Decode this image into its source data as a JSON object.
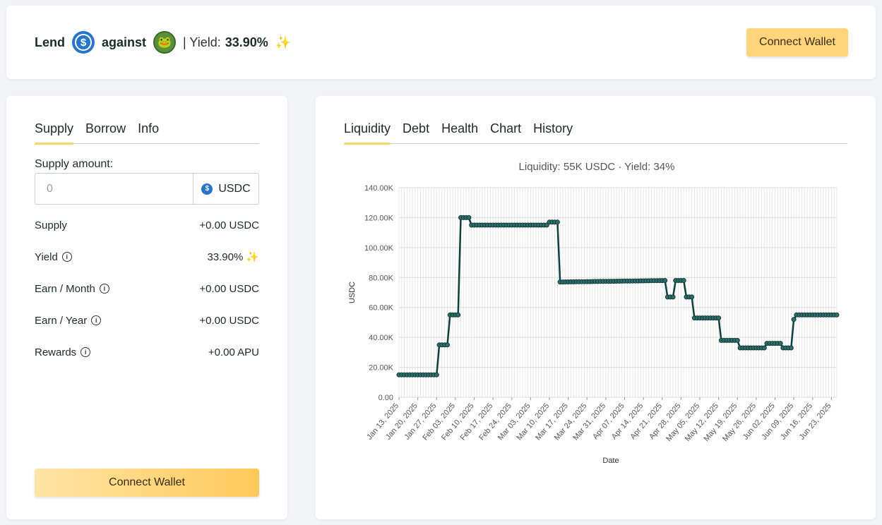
{
  "header": {
    "lend_label": "Lend",
    "against_label": "against",
    "yield_label": "| Yield:",
    "yield_value": "33.90%",
    "connect_label": "Connect Wallet"
  },
  "left_panel": {
    "tabs": [
      "Supply",
      "Borrow",
      "Info"
    ],
    "active_tab": "Supply",
    "supply_amount_label": "Supply amount:",
    "input_placeholder": "0",
    "token": "USDC",
    "stats": [
      {
        "label": "Supply",
        "value": "+0.00 USDC",
        "info": false,
        "sparkle": false
      },
      {
        "label": "Yield",
        "value": "33.90%",
        "info": true,
        "sparkle": true
      },
      {
        "label": "Earn / Month",
        "value": "+0.00 USDC",
        "info": true,
        "sparkle": false
      },
      {
        "label": "Earn / Year",
        "value": "+0.00 USDC",
        "info": true,
        "sparkle": false
      },
      {
        "label": "Rewards",
        "value": "+0.00 APU",
        "info": true,
        "sparkle": false
      }
    ],
    "connect_label": "Connect Wallet"
  },
  "right_panel": {
    "tabs": [
      "Liquidity",
      "Debt",
      "Health",
      "Chart",
      "History"
    ],
    "active_tab": "Liquidity"
  },
  "colors": {
    "accent": "#ffd36b",
    "line": "#0f4040",
    "usdc": "#2775ca"
  },
  "chart_data": {
    "type": "line",
    "title": "Liquidity: 55K USDC · Yield: 34%",
    "xlabel": "Date",
    "ylabel": "USDC",
    "ylim": [
      0,
      140000
    ],
    "y_ticks": [
      "0.00",
      "20.00K",
      "40.00K",
      "60.00K",
      "80.00K",
      "100.00K",
      "120.00K",
      "140.00K"
    ],
    "x_ticks": [
      "Jan 13, 2025",
      "Jan 20, 2025",
      "Jan 27, 2025",
      "Feb 03, 2025",
      "Feb 10, 2025",
      "Feb 17, 2025",
      "Feb 24, 2025",
      "Mar 03, 2025",
      "Mar 10, 2025",
      "Mar 17, 2025",
      "Mar 24, 2025",
      "Mar 31, 2025",
      "Apr 07, 2025",
      "Apr 14, 2025",
      "Apr 21, 2025",
      "Apr 28, 2025",
      "May 05, 2025",
      "May 12, 2025",
      "May 19, 2025",
      "May 26, 2025",
      "Jun 02, 2025",
      "Jun 09, 2025",
      "Jun 16, 2025",
      "Jun 23, 2025"
    ],
    "grid": true,
    "x_start": "2025-01-13",
    "x_end": "2025-06-25",
    "points": [
      [
        "2025-01-13",
        15000
      ],
      [
        "2025-01-27",
        15000
      ],
      [
        "2025-01-28",
        35000
      ],
      [
        "2025-01-31",
        35000
      ],
      [
        "2025-02-01",
        55000
      ],
      [
        "2025-02-04",
        55000
      ],
      [
        "2025-02-05",
        120000
      ],
      [
        "2025-02-08",
        120000
      ],
      [
        "2025-02-09",
        115000
      ],
      [
        "2025-03-09",
        115000
      ],
      [
        "2025-03-10",
        117000
      ],
      [
        "2025-03-13",
        117000
      ],
      [
        "2025-03-14",
        77000
      ],
      [
        "2025-04-22",
        78000
      ],
      [
        "2025-04-23",
        67000
      ],
      [
        "2025-04-25",
        67000
      ],
      [
        "2025-04-26",
        78000
      ],
      [
        "2025-04-29",
        78000
      ],
      [
        "2025-04-30",
        67000
      ],
      [
        "2025-05-02",
        67000
      ],
      [
        "2025-05-03",
        53000
      ],
      [
        "2025-05-12",
        53000
      ],
      [
        "2025-05-13",
        38000
      ],
      [
        "2025-05-19",
        38000
      ],
      [
        "2025-05-20",
        33000
      ],
      [
        "2025-05-29",
        33000
      ],
      [
        "2025-05-30",
        36000
      ],
      [
        "2025-06-04",
        36000
      ],
      [
        "2025-06-05",
        33000
      ],
      [
        "2025-06-08",
        33000
      ],
      [
        "2025-06-09",
        52000
      ],
      [
        "2025-06-10",
        55000
      ],
      [
        "2025-06-25",
        55000
      ]
    ]
  }
}
